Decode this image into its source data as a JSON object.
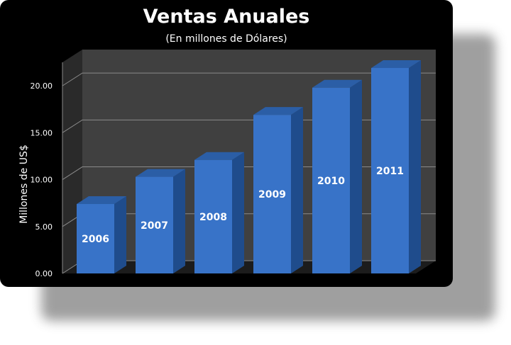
{
  "colors": {
    "background": "#000000",
    "plot_back_wall": "#404040",
    "bar_front": "#3873c8",
    "bar_top": "#2b5ea6",
    "bar_side": "#1f4c8c",
    "gridline": "#8a8a8a",
    "text": "#ffffff"
  },
  "chart_data": {
    "type": "bar",
    "title": "Ventas Anuales",
    "subtitle": "(En millones de Dólares)",
    "xlabel": "",
    "ylabel": "Millones de US$",
    "categories": [
      "2006",
      "2007",
      "2008",
      "2009",
      "2010",
      "2011"
    ],
    "series": [
      {
        "values": [
          7.4,
          10.3,
          12.1,
          16.9,
          19.8,
          21.9
        ]
      }
    ],
    "ylim": [
      0,
      22.5
    ],
    "yticks": [
      0,
      5,
      10,
      15,
      20
    ],
    "ytick_labels": [
      "0.00",
      "5.00",
      "10.00",
      "15.00",
      "20.00"
    ],
    "grid": true,
    "legend": "none",
    "data_labels": "category name inside each bar",
    "style": "3d"
  }
}
